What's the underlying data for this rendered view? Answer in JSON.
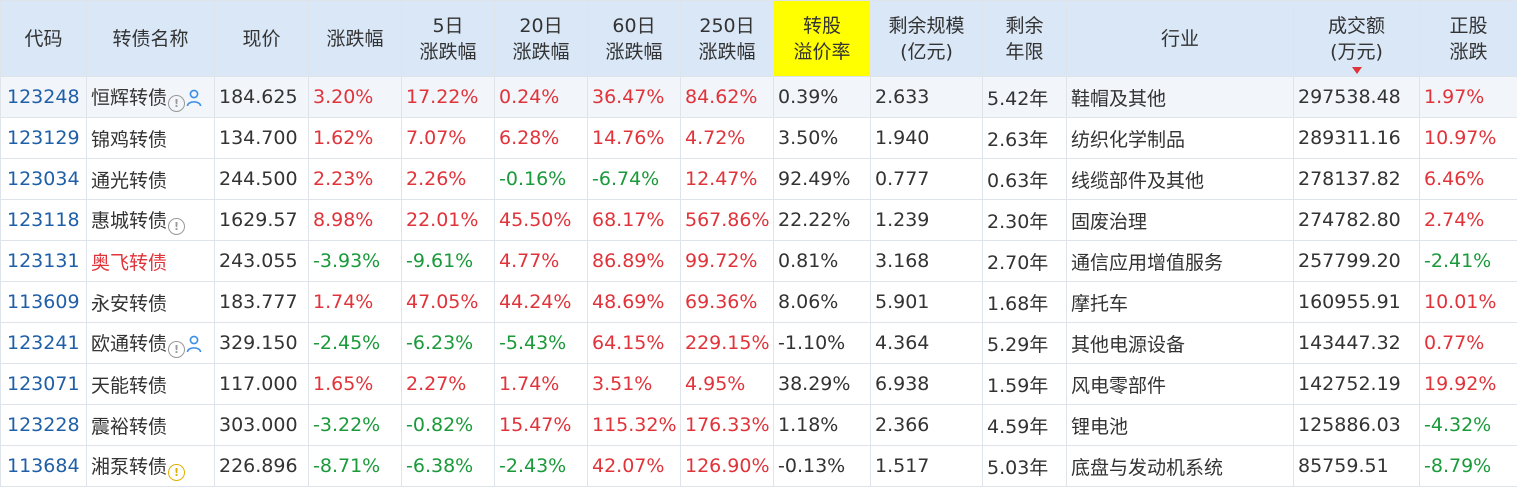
{
  "columns": [
    {
      "label": "代码"
    },
    {
      "label": "转债名称"
    },
    {
      "label": "现价"
    },
    {
      "label": "涨跌幅"
    },
    {
      "label": "5日\n涨跌幅"
    },
    {
      "label": "20日\n涨跌幅"
    },
    {
      "label": "60日\n涨跌幅"
    },
    {
      "label": "250日\n涨跌幅"
    },
    {
      "label": "转股\n溢价率",
      "highlight": true
    },
    {
      "label": "剩余规模\n(亿元)"
    },
    {
      "label": "剩余\n年限"
    },
    {
      "label": "行业"
    },
    {
      "label": "成交额\n(万元)",
      "sorted": "desc"
    },
    {
      "label": "正股\n涨跌"
    }
  ],
  "rows": [
    {
      "code": "123248",
      "name": "恒辉转债",
      "icons": [
        "info",
        "person"
      ],
      "price": "184.625",
      "chg": "3.20%",
      "chg5": "17.22%",
      "chg20": "0.24%",
      "chg60": "36.47%",
      "chg250": "84.62%",
      "premium": "0.39%",
      "scale": "2.633",
      "years": "5.42年",
      "industry": "鞋帽及其他",
      "turnover": "297538.48",
      "stock_chg": "1.97%"
    },
    {
      "code": "123129",
      "name": "锦鸡转债",
      "icons": [],
      "price": "134.700",
      "chg": "1.62%",
      "chg5": "7.07%",
      "chg20": "6.28%",
      "chg60": "14.76%",
      "chg250": "4.72%",
      "premium": "3.50%",
      "scale": "1.940",
      "years": "2.63年",
      "industry": "纺织化学制品",
      "turnover": "289311.16",
      "stock_chg": "10.97%"
    },
    {
      "code": "123034",
      "name": "通光转债",
      "icons": [],
      "price": "244.500",
      "chg": "2.23%",
      "chg5": "2.26%",
      "chg20": "-0.16%",
      "chg60": "-6.74%",
      "chg250": "12.47%",
      "premium": "92.49%",
      "scale": "0.777",
      "years": "0.63年",
      "industry": "线缆部件及其他",
      "turnover": "278137.82",
      "stock_chg": "6.46%"
    },
    {
      "code": "123118",
      "name": "惠城转债",
      "icons": [
        "info"
      ],
      "price": "1629.57",
      "chg": "8.98%",
      "chg5": "22.01%",
      "chg20": "45.50%",
      "chg60": "68.17%",
      "chg250": "567.86%",
      "premium": "22.22%",
      "scale": "1.239",
      "years": "2.30年",
      "industry": "固废治理",
      "turnover": "274782.80",
      "stock_chg": "2.74%"
    },
    {
      "code": "123131",
      "name": "奥飞转债",
      "name_red": true,
      "icons": [],
      "price": "243.055",
      "chg": "-3.93%",
      "chg5": "-9.61%",
      "chg20": "4.77%",
      "chg60": "86.89%",
      "chg250": "99.72%",
      "premium": "0.81%",
      "scale": "3.168",
      "years": "2.70年",
      "industry": "通信应用增值服务",
      "turnover": "257799.20",
      "stock_chg": "-2.41%"
    },
    {
      "code": "113609",
      "name": "永安转债",
      "icons": [],
      "price": "183.777",
      "chg": "1.74%",
      "chg5": "47.05%",
      "chg20": "44.24%",
      "chg60": "48.69%",
      "chg250": "69.36%",
      "premium": "8.06%",
      "scale": "5.901",
      "years": "1.68年",
      "industry": "摩托车",
      "turnover": "160955.91",
      "stock_chg": "10.01%"
    },
    {
      "code": "123241",
      "name": "欧通转债",
      "icons": [
        "info",
        "person"
      ],
      "price": "329.150",
      "chg": "-2.45%",
      "chg5": "-6.23%",
      "chg20": "-5.43%",
      "chg60": "64.15%",
      "chg250": "229.15%",
      "premium": "-1.10%",
      "scale": "4.364",
      "years": "5.29年",
      "industry": "其他电源设备",
      "turnover": "143447.32",
      "stock_chg": "0.77%"
    },
    {
      "code": "123071",
      "name": "天能转债",
      "icons": [],
      "price": "117.000",
      "chg": "1.65%",
      "chg5": "2.27%",
      "chg20": "1.74%",
      "chg60": "3.51%",
      "chg250": "4.95%",
      "premium": "38.29%",
      "scale": "6.938",
      "years": "1.59年",
      "industry": "风电零部件",
      "turnover": "142752.19",
      "stock_chg": "19.92%"
    },
    {
      "code": "123228",
      "name": "震裕转债",
      "icons": [],
      "price": "303.000",
      "chg": "-3.22%",
      "chg5": "-0.82%",
      "chg20": "15.47%",
      "chg60": "115.32%",
      "chg250": "176.33%",
      "premium": "1.18%",
      "scale": "2.366",
      "years": "4.59年",
      "industry": "锂电池",
      "turnover": "125886.03",
      "stock_chg": "-4.32%"
    },
    {
      "code": "113684",
      "name": "湘泵转债",
      "icons": [
        "warn"
      ],
      "price": "226.896",
      "chg": "-8.71%",
      "chg5": "-6.38%",
      "chg20": "-2.43%",
      "chg60": "42.07%",
      "chg250": "126.90%",
      "premium": "-0.13%",
      "scale": "1.517",
      "years": "5.03年",
      "industry": "底盘与发动机系统",
      "turnover": "85759.51",
      "stock_chg": "-8.79%"
    }
  ],
  "colors": {
    "up": "#e0333a",
    "down": "#1a9a3a",
    "code": "#1f5fa8",
    "header_bg": "#d9e7f7",
    "highlight": "#ffff00"
  }
}
